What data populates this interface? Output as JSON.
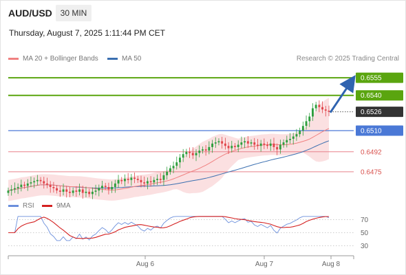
{
  "header": {
    "symbol": "AUD/USD",
    "timeframe": "30 MIN",
    "datetime": "Thursday, August 7, 2025 1:11:44 PM CET"
  },
  "legend": {
    "ma20_label": "MA 20 + Bollinger Bands",
    "ma50_label": "MA 50",
    "credit": "Research © 2025 Trading Central",
    "rsi_label": "RSI",
    "ma9_label": "9MA"
  },
  "colors": {
    "up_candle": "#2e9e3e",
    "down_candle": "#e0454b",
    "bollinger_fill": "#fbe0e1",
    "ma20": "#f08080",
    "ma50": "#3a6fb0",
    "resistance": "#5aa50f",
    "pivot": "#4a78d6",
    "support": "#e8808a",
    "current_price": "#333333",
    "arrow": "#2f63b0",
    "rsi": "#6b8fdc",
    "rsi_ma": "#d42020"
  },
  "chart_data": [
    {
      "type": "candlestick",
      "title": "AUD/USD 30 MIN",
      "x_labels": [
        "Aug 6",
        "Aug 7",
        "Aug 8"
      ],
      "ylim": [
        0.6455,
        0.6565
      ],
      "closes": [
        0.6459,
        0.646,
        0.6461,
        0.6462,
        0.6464,
        0.6463,
        0.6465,
        0.6466,
        0.6467,
        0.6468,
        0.6467,
        0.6465,
        0.6464,
        0.6462,
        0.6461,
        0.6459,
        0.6458,
        0.646,
        0.6458,
        0.6457,
        0.6459,
        0.6458,
        0.646,
        0.6457,
        0.6458,
        0.6456,
        0.6458,
        0.6459,
        0.6461,
        0.6463,
        0.6462,
        0.646,
        0.6462,
        0.6465,
        0.6468,
        0.6467,
        0.6469,
        0.6468,
        0.647,
        0.6469,
        0.6468,
        0.6466,
        0.6465,
        0.6467,
        0.6466,
        0.6468,
        0.6469,
        0.6468,
        0.6472,
        0.6475,
        0.6478,
        0.648,
        0.6483,
        0.6487,
        0.649,
        0.6492,
        0.6491,
        0.6489,
        0.6491,
        0.6493,
        0.6494,
        0.6493,
        0.6496,
        0.6499,
        0.65,
        0.6501,
        0.6499,
        0.6497,
        0.6495,
        0.6497,
        0.6496,
        0.6498,
        0.65,
        0.6501,
        0.6499,
        0.65,
        0.6498,
        0.6497,
        0.6499,
        0.6498,
        0.6497,
        0.6499,
        0.6496,
        0.6494,
        0.6498,
        0.65,
        0.6502,
        0.6503,
        0.6505,
        0.6507,
        0.651,
        0.6514,
        0.6518,
        0.6522,
        0.6529,
        0.6532,
        0.653,
        0.6528,
        0.6527,
        0.6526
      ],
      "levels": {
        "resistance": [
          0.6555,
          0.654
        ],
        "current": 0.6526,
        "pivot": 0.651,
        "support": [
          0.6492,
          0.6475
        ]
      },
      "series": [
        {
          "name": "MA 20 + Bollinger Bands"
        },
        {
          "name": "MA 50"
        }
      ]
    },
    {
      "type": "line",
      "ylim": [
        20,
        80
      ],
      "yticks": [
        70,
        50,
        30
      ],
      "series": [
        {
          "name": "RSI"
        },
        {
          "name": "9MA"
        }
      ]
    }
  ]
}
